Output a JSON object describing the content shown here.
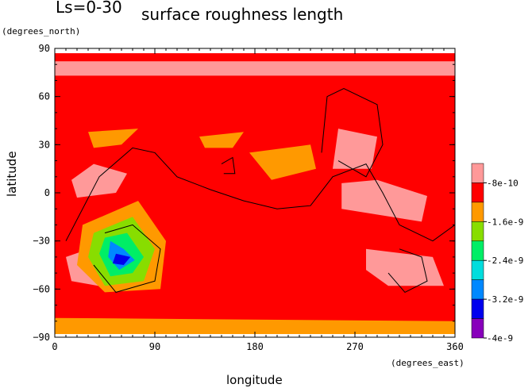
{
  "chart_data": {
    "type": "heatmap",
    "title_prefix": "Ls=0-30",
    "title": "surface roughness length",
    "xlabel": "longitude",
    "ylabel": "latitude",
    "x_unit": "(degrees_east)",
    "y_unit": "(degrees_north)",
    "xlim": [
      0,
      360
    ],
    "ylim": [
      -90,
      90
    ],
    "x_ticks": [
      0,
      90,
      180,
      270,
      360
    ],
    "y_ticks": [
      90,
      60,
      30,
      0,
      -30,
      -60,
      -90
    ],
    "colorbar": {
      "colors": [
        "#ff9999",
        "#ff0000",
        "#ff9900",
        "#88dd00",
        "#00ee66",
        "#00dddd",
        "#0088ff",
        "#0000ee",
        "#8800bb"
      ],
      "labels": [
        "-8e-10",
        "-1.6e-9",
        "-2.4e-9",
        "-3.2e-9",
        "-4e-9"
      ]
    },
    "background_level_color": "#ff0000",
    "regions": [
      {
        "level": "-8e-10 to 0",
        "color": "#ff9999",
        "points": [
          [
            0,
            73
          ],
          [
            360,
            73
          ],
          [
            360,
            82
          ],
          [
            0,
            82
          ]
        ]
      },
      {
        "level": "-8e-10 to 0",
        "color": "#ff9999",
        "points": [
          [
            10,
            -40
          ],
          [
            60,
            -28
          ],
          [
            85,
            -45
          ],
          [
            55,
            -60
          ],
          [
            15,
            -55
          ]
        ]
      },
      {
        "level": "-8e-10 to 0",
        "color": "#ff9999",
        "points": [
          [
            20,
            -3
          ],
          [
            55,
            0
          ],
          [
            65,
            12
          ],
          [
            35,
            18
          ],
          [
            15,
            8
          ]
        ]
      },
      {
        "level": "-8e-10 to 0",
        "color": "#ff9999",
        "points": [
          [
            258,
            -10
          ],
          [
            330,
            -18
          ],
          [
            335,
            -2
          ],
          [
            290,
            8
          ],
          [
            258,
            6
          ]
        ]
      },
      {
        "level": "-8e-10 to 0",
        "color": "#ff9999",
        "points": [
          [
            280,
            -35
          ],
          [
            340,
            -40
          ],
          [
            350,
            -58
          ],
          [
            300,
            -58
          ],
          [
            280,
            -48
          ]
        ]
      },
      {
        "level": "-8e-10 to 0",
        "color": "#ff9999",
        "points": [
          [
            250,
            15
          ],
          [
            285,
            15
          ],
          [
            290,
            35
          ],
          [
            255,
            40
          ]
        ]
      },
      {
        "level": "-1.6e-9 to -8e-10",
        "color": "#ff9900",
        "points": [
          [
            30,
            38
          ],
          [
            75,
            40
          ],
          [
            60,
            30
          ],
          [
            35,
            28
          ]
        ]
      },
      {
        "level": "-1.6e-9 to -8e-10",
        "color": "#ff9900",
        "points": [
          [
            130,
            35
          ],
          [
            170,
            38
          ],
          [
            160,
            28
          ],
          [
            135,
            28
          ]
        ]
      },
      {
        "level": "-1.6e-9 to -8e-10",
        "color": "#ff9900",
        "points": [
          [
            175,
            25
          ],
          [
            230,
            30
          ],
          [
            235,
            15
          ],
          [
            195,
            8
          ]
        ]
      },
      {
        "level": "-1.6e-9 to -8e-10",
        "color": "#ff9900",
        "points": [
          [
            0,
            -78
          ],
          [
            360,
            -80
          ],
          [
            360,
            -88
          ],
          [
            0,
            -88
          ]
        ]
      },
      {
        "level": "-1.6e-9 to -8e-10",
        "color": "#ff9900",
        "points": [
          [
            25,
            -20
          ],
          [
            75,
            -5
          ],
          [
            100,
            -30
          ],
          [
            95,
            -60
          ],
          [
            45,
            -62
          ],
          [
            20,
            -45
          ]
        ]
      },
      {
        "level": "-2.4e-9 to -1.6e-9",
        "color": "#88dd00",
        "points": [
          [
            35,
            -25
          ],
          [
            70,
            -15
          ],
          [
            90,
            -35
          ],
          [
            80,
            -55
          ],
          [
            45,
            -58
          ],
          [
            30,
            -40
          ]
        ]
      },
      {
        "level": "-3.2e-9 to -2.4e-9",
        "color": "#00ee66",
        "points": [
          [
            45,
            -28
          ],
          [
            65,
            -25
          ],
          [
            80,
            -40
          ],
          [
            70,
            -50
          ],
          [
            50,
            -52
          ],
          [
            40,
            -38
          ]
        ]
      },
      {
        "level": "-4e-9 to -3.2e-9",
        "color": "#0088ff",
        "points": [
          [
            50,
            -30
          ],
          [
            62,
            -35
          ],
          [
            72,
            -42
          ],
          [
            58,
            -48
          ],
          [
            48,
            -40
          ]
        ]
      },
      {
        "level": "< -4e-9",
        "color": "#0000ee",
        "points": [
          [
            55,
            -38
          ],
          [
            68,
            -40
          ],
          [
            62,
            -45
          ],
          [
            52,
            -44
          ]
        ]
      }
    ],
    "topography_contours": [
      {
        "name": "",
        "points": [
          [
            10,
            -30
          ],
          [
            40,
            10
          ],
          [
            70,
            28
          ],
          [
            90,
            25
          ],
          [
            110,
            10
          ],
          [
            140,
            2
          ],
          [
            170,
            -5
          ],
          [
            200,
            -10
          ],
          [
            230,
            -8
          ],
          [
            250,
            10
          ],
          [
            280,
            18
          ],
          [
            295,
            0
          ],
          [
            310,
            -20
          ],
          [
            340,
            -30
          ],
          [
            360,
            -20
          ]
        ]
      },
      {
        "name": "",
        "points": [
          [
            45,
            -25
          ],
          [
            70,
            -20
          ],
          [
            95,
            -35
          ],
          [
            90,
            -55
          ],
          [
            55,
            -62
          ],
          [
            35,
            -45
          ]
        ]
      },
      {
        "name": "",
        "points": [
          [
            240,
            25
          ],
          [
            245,
            60
          ],
          [
            260,
            65
          ],
          [
            290,
            55
          ],
          [
            295,
            30
          ],
          [
            280,
            10
          ],
          [
            255,
            20
          ]
        ]
      },
      {
        "name": "",
        "points": [
          [
            310,
            -35
          ],
          [
            330,
            -40
          ],
          [
            335,
            -55
          ],
          [
            315,
            -62
          ],
          [
            300,
            -50
          ]
        ]
      },
      {
        "name": "",
        "points": [
          [
            150,
            18
          ],
          [
            160,
            22
          ],
          [
            162,
            12
          ],
          [
            152,
            12
          ]
        ]
      }
    ]
  }
}
